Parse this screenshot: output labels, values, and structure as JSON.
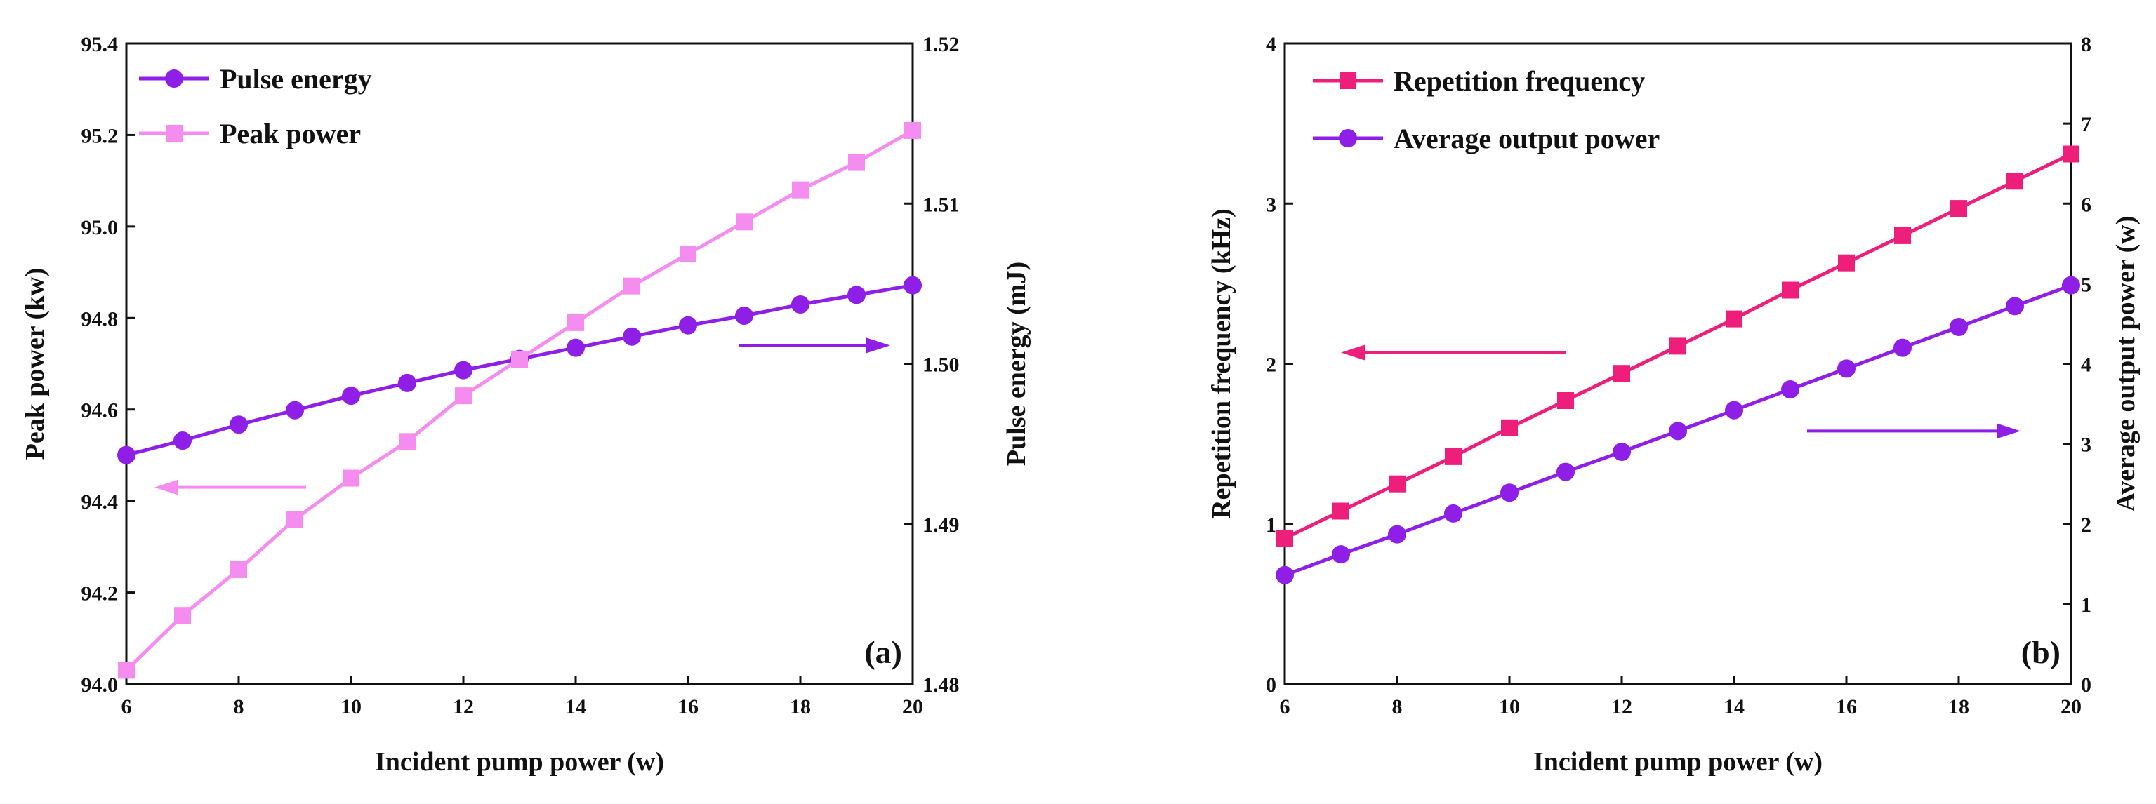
{
  "colors": {
    "purple": "#8f1ee6",
    "pink": "#f58cf0",
    "crimson": "#ee1f7b",
    "axis": "#111111"
  },
  "chart_data": [
    {
      "type": "line",
      "panel_label": "(a)",
      "xlabel": "Incident pump power (w)",
      "xlim": [
        6,
        20
      ],
      "xticks": [
        6,
        8,
        10,
        12,
        14,
        16,
        18,
        20
      ],
      "left_axis": {
        "label": "Peak power (kw)",
        "lim": [
          94.0,
          95.4
        ],
        "ticks": [
          "94.0",
          "94.2",
          "94.4",
          "94.6",
          "94.8",
          "95.0",
          "95.2",
          "95.4"
        ]
      },
      "right_axis": {
        "label": "Pulse energy (mJ)",
        "lim": [
          1.48,
          1.52
        ],
        "ticks": [
          "1.48",
          "1.49",
          "1.50",
          "1.51",
          "1.52"
        ]
      },
      "series": [
        {
          "name": "Pulse energy",
          "axis": "right",
          "marker": "circle",
          "color_key": "purple",
          "x": [
            6,
            7,
            8,
            9,
            10,
            11,
            12,
            13,
            14,
            15,
            16,
            17,
            18,
            19,
            20
          ],
          "values": [
            1.4943,
            1.4952,
            1.4962,
            1.4971,
            1.498,
            1.4988,
            1.4996,
            1.5003,
            1.501,
            1.5017,
            1.5024,
            1.503,
            1.5037,
            1.5043,
            1.5049
          ]
        },
        {
          "name": "Peak power",
          "axis": "left",
          "marker": "square",
          "color_key": "pink",
          "x": [
            6,
            7,
            8,
            9,
            10,
            11,
            12,
            13,
            14,
            15,
            16,
            17,
            18,
            19,
            20
          ],
          "values": [
            94.03,
            94.15,
            94.25,
            94.36,
            94.45,
            94.53,
            94.63,
            94.71,
            94.79,
            94.87,
            94.94,
            95.01,
            95.08,
            95.14,
            95.21
          ]
        }
      ],
      "arrows": [
        {
          "points_to": "left",
          "color_key": "pink",
          "x_from": 9.2,
          "x_to": 6.5,
          "y_left_axis": 94.43
        },
        {
          "points_to": "right",
          "color_key": "purple",
          "x_from": 16.9,
          "x_to": 19.6,
          "y_left_axis": 94.74
        }
      ]
    },
    {
      "type": "line",
      "panel_label": "(b)",
      "xlabel": "Incident pump power (w)",
      "xlim": [
        6,
        20
      ],
      "xticks": [
        6,
        8,
        10,
        12,
        14,
        16,
        18,
        20
      ],
      "left_axis": {
        "label": "Repetition frequency (kHz)",
        "lim": [
          0,
          4
        ],
        "ticks": [
          "0",
          "1",
          "2",
          "3",
          "4"
        ]
      },
      "right_axis": {
        "label": "Average output power (w)",
        "lim": [
          0,
          8
        ],
        "ticks": [
          "0",
          "1",
          "2",
          "3",
          "4",
          "5",
          "6",
          "7",
          "8"
        ]
      },
      "series": [
        {
          "name": "Repetition frequency",
          "axis": "left",
          "marker": "square",
          "color_key": "crimson",
          "x": [
            6,
            7,
            8,
            9,
            10,
            11,
            12,
            13,
            14,
            15,
            16,
            17,
            18,
            19,
            20
          ],
          "values": [
            0.91,
            1.08,
            1.25,
            1.42,
            1.6,
            1.77,
            1.94,
            2.11,
            2.28,
            2.46,
            2.63,
            2.8,
            2.97,
            3.14,
            3.31
          ]
        },
        {
          "name": "Average output power",
          "axis": "right",
          "marker": "circle",
          "color_key": "purple",
          "x": [
            6,
            7,
            8,
            9,
            10,
            11,
            12,
            13,
            14,
            15,
            16,
            17,
            18,
            19,
            20
          ],
          "values": [
            1.36,
            1.62,
            1.87,
            2.13,
            2.39,
            2.65,
            2.9,
            3.16,
            3.42,
            3.68,
            3.94,
            4.2,
            4.46,
            4.72,
            4.98
          ]
        }
      ],
      "arrows": [
        {
          "points_to": "left",
          "color_key": "crimson",
          "x_from": 11.0,
          "x_to": 7.0,
          "y_left_axis": 2.07
        },
        {
          "points_to": "right",
          "color_key": "purple",
          "x_from": 15.3,
          "x_to": 19.1,
          "y_left_axis": 1.58
        }
      ]
    }
  ]
}
